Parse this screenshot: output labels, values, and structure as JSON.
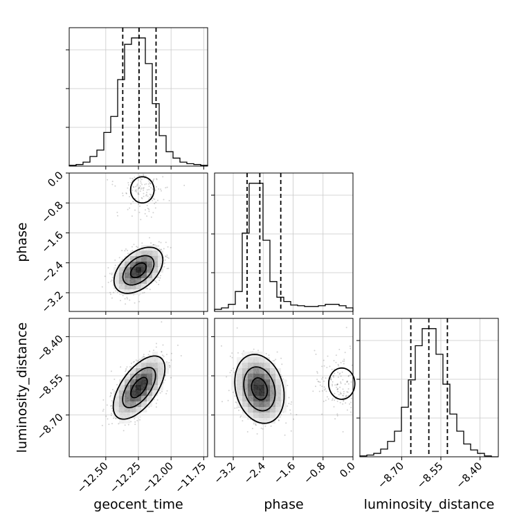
{
  "chart_data": {
    "type": "corner",
    "parameters": [
      "geocent_time",
      "phase",
      "luminosity_distance"
    ],
    "grid": true,
    "quantile_lines": "dashed",
    "axes": {
      "geocent_time": {
        "label": "geocent_time",
        "range": [
          -12.78,
          -11.72
        ],
        "ticks": [
          -12.5,
          -12.25,
          -12.0,
          -11.75
        ],
        "tick_labels": [
          "−12.50",
          "−12.25",
          "−12.00",
          "−11.75"
        ],
        "quantiles": [
          -12.37,
          -12.245,
          -12.115
        ]
      },
      "phase": {
        "label": "phase",
        "range": [
          -3.7,
          0.0
        ],
        "ticks": [
          -3.2,
          -2.4,
          -1.6,
          -0.8,
          0.0
        ],
        "tick_labels": [
          "−3.2",
          "−2.4",
          "−1.6",
          "−0.8",
          "0.0"
        ],
        "quantiles": [
          -2.83,
          -2.49,
          -1.93
        ]
      },
      "luminosity_distance": {
        "label": "luminosity_distance",
        "range": [
          -8.86,
          -8.33
        ],
        "ticks": [
          -8.7,
          -8.55,
          -8.4
        ],
        "tick_labels": [
          "−8.70",
          "−8.55",
          "−8.40"
        ],
        "quantiles": [
          -8.665,
          -8.596,
          -8.525
        ]
      }
    },
    "histograms": {
      "geocent_time": {
        "edges": [
          -12.78,
          -12.727,
          -12.674,
          -12.621,
          -12.568,
          -12.515,
          -12.462,
          -12.409,
          -12.356,
          -12.303,
          -12.25,
          -12.197,
          -12.144,
          -12.091,
          -12.038,
          -11.985,
          -11.932,
          -11.879,
          -11.826,
          -11.773,
          -11.72
        ],
        "counts": [
          1,
          2,
          5,
          12,
          20,
          42,
          62,
          108,
          152,
          160,
          160,
          128,
          78,
          38,
          18,
          10,
          5,
          3,
          2,
          1
        ]
      },
      "phase": {
        "edges": [
          -3.7,
          -3.515,
          -3.33,
          -3.145,
          -2.96,
          -2.775,
          -2.59,
          -2.405,
          -2.22,
          -2.035,
          -1.85,
          -1.665,
          -1.48,
          -1.295,
          -1.11,
          -0.925,
          -0.74,
          -0.555,
          -0.37,
          -0.185,
          0.0
        ],
        "counts": [
          3,
          5,
          10,
          28,
          110,
          180,
          180,
          100,
          42,
          20,
          14,
          9,
          8,
          7,
          7,
          8,
          10,
          10,
          8,
          5
        ]
      },
      "luminosity_distance": {
        "edges": [
          -8.86,
          -8.8335,
          -8.807,
          -8.7805,
          -8.754,
          -8.7275,
          -8.701,
          -8.6745,
          -8.648,
          -8.6215,
          -8.595,
          -8.5685,
          -8.542,
          -8.5155,
          -8.489,
          -8.4625,
          -8.436,
          -8.4095,
          -8.383,
          -8.3565,
          -8.33
        ],
        "counts": [
          1,
          2,
          4,
          9,
          18,
          30,
          58,
          90,
          130,
          150,
          150,
          120,
          85,
          50,
          30,
          15,
          8,
          4,
          1,
          0
        ]
      }
    },
    "pairs": [
      {
        "x": "geocent_time",
        "y": "phase",
        "density": "bimodal",
        "modes": [
          {
            "center": [
              -12.25,
              -2.6
            ],
            "x_sd": 0.085,
            "y_sd": 0.28,
            "rho": 0.45,
            "weight": 0.88
          },
          {
            "center": [
              -12.22,
              -0.45
            ],
            "x_sd": 0.09,
            "y_sd": 0.35,
            "rho": 0.0,
            "weight": 0.12
          }
        ]
      },
      {
        "x": "geocent_time",
        "y": "luminosity_distance",
        "density": "unimodal",
        "modes": [
          {
            "center": [
              -12.245,
              -8.595
            ],
            "x_sd": 0.09,
            "y_sd": 0.055,
            "rho": 0.6,
            "weight": 1.0
          }
        ]
      },
      {
        "x": "phase",
        "y": "luminosity_distance",
        "density": "bimodal",
        "modes": [
          {
            "center": [
              -2.5,
              -8.6
            ],
            "x_sd": 0.3,
            "y_sd": 0.06,
            "rho": -0.2,
            "weight": 0.87
          },
          {
            "center": [
              -0.3,
              -8.58
            ],
            "x_sd": 0.35,
            "y_sd": 0.06,
            "rho": 0.0,
            "weight": 0.13
          }
        ]
      }
    ]
  }
}
